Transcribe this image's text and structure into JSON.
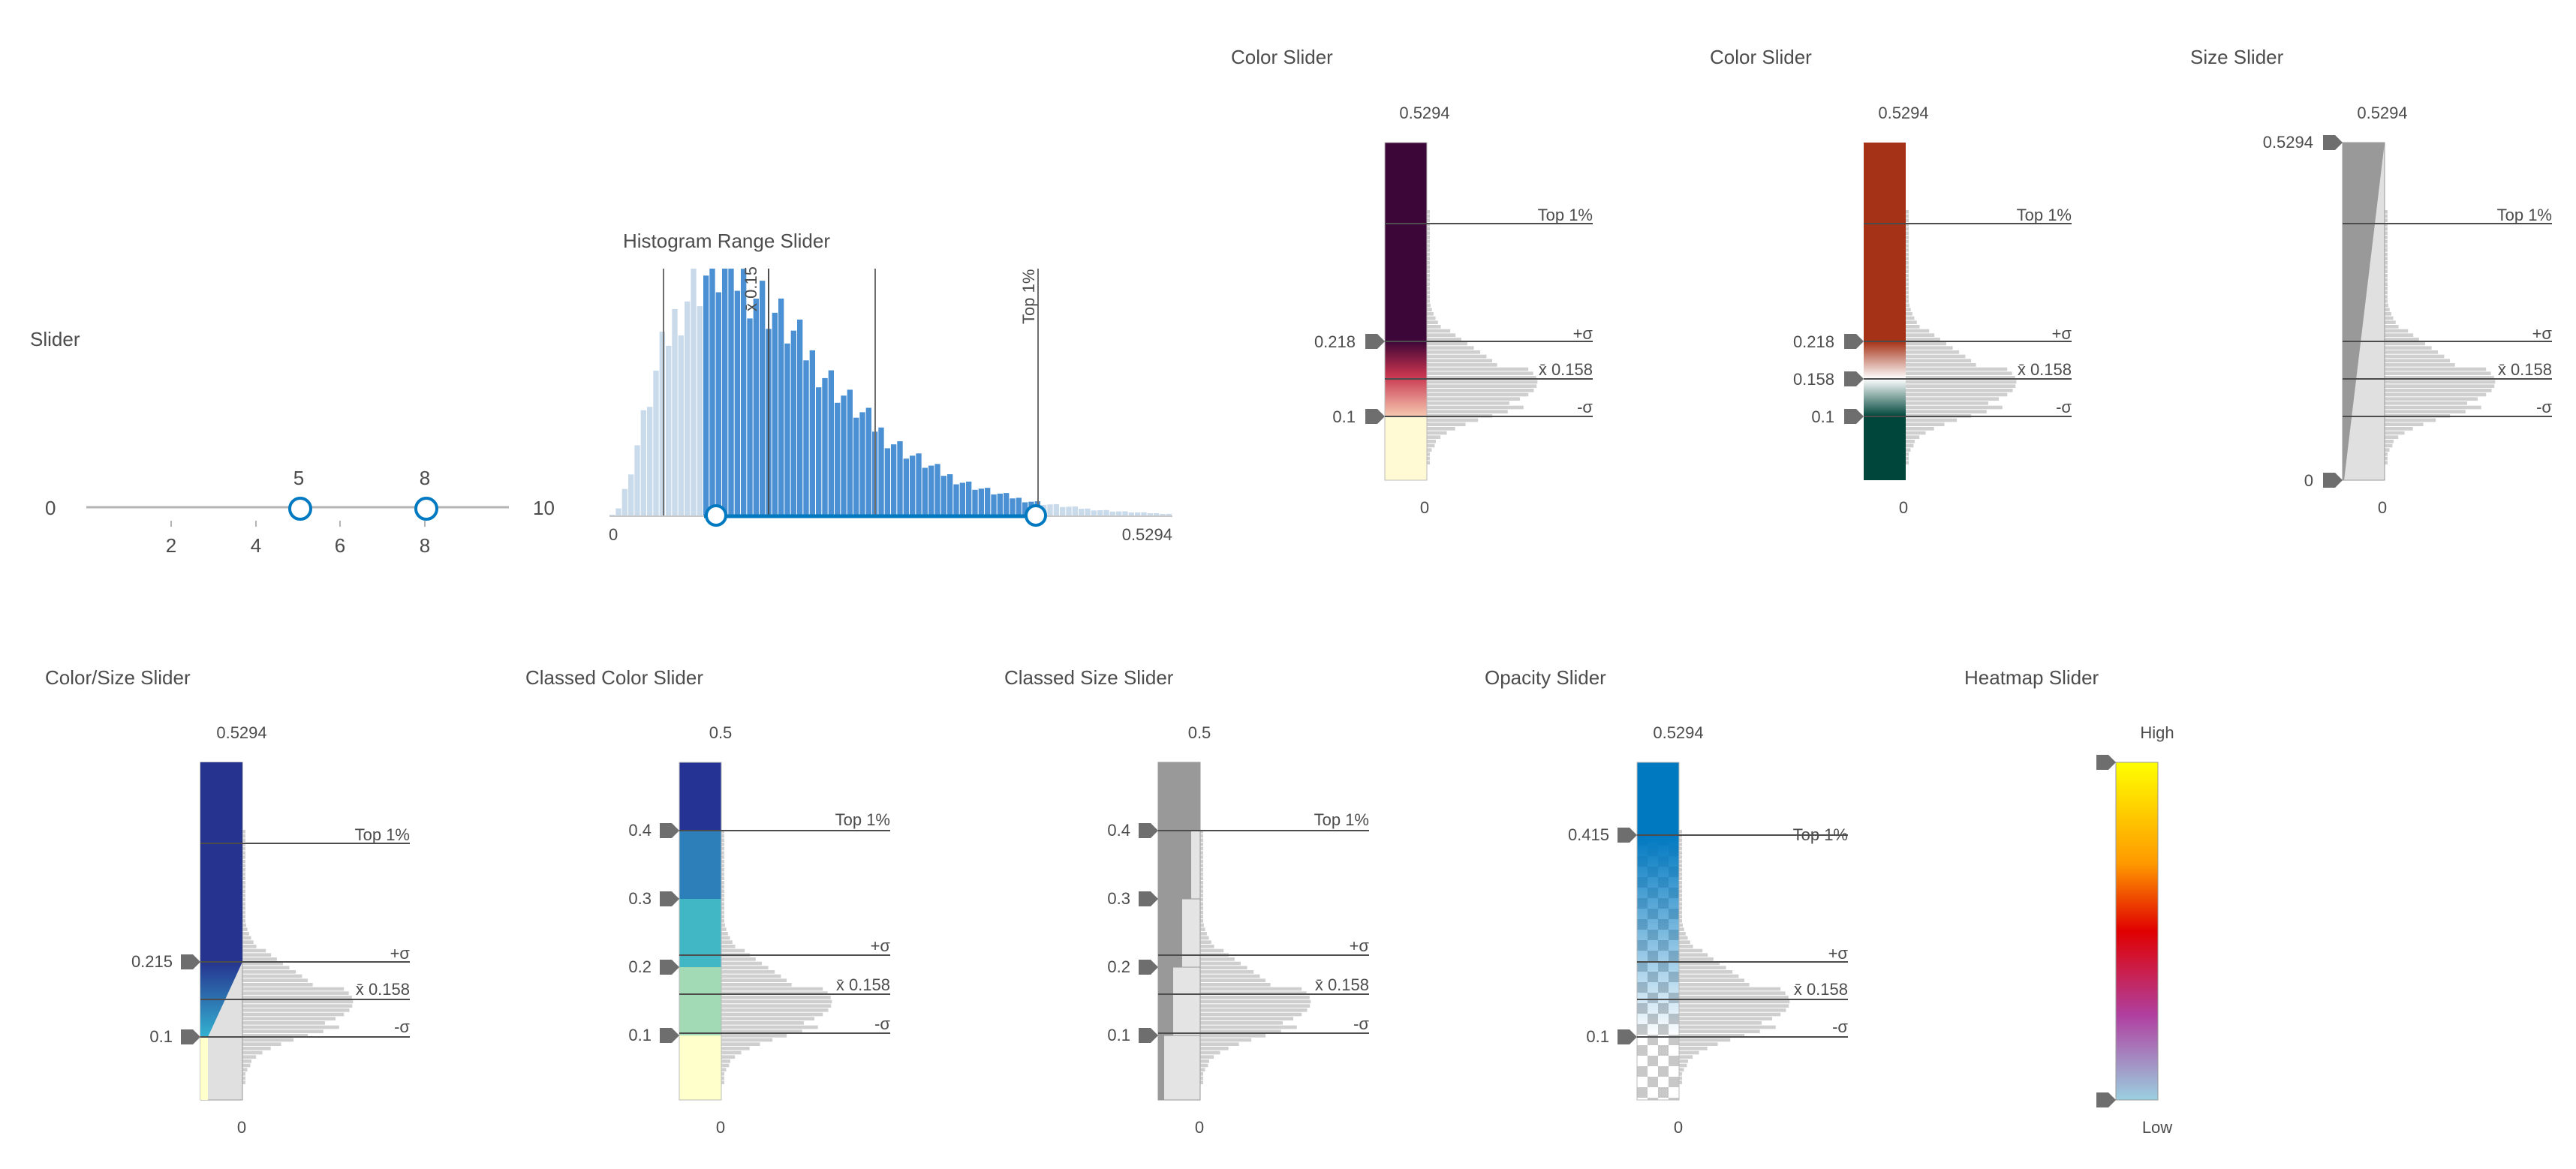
{
  "simple_slider": {
    "title": "Slider",
    "min_label": "0",
    "max_label": "10",
    "value1": "5",
    "value2": "8",
    "ticks": [
      "2",
      "4",
      "6",
      "8"
    ],
    "accent": "#0079c1"
  },
  "histogram_range_slider": {
    "title": "Histogram Range Slider",
    "min_label": "0",
    "max_label": "0.5294",
    "mean_label": "x̄ 0.15",
    "top_label": "Top 1%",
    "bar_color": "#4a90d2",
    "bar_color_light": "#c9daeb"
  },
  "color_slider_1": {
    "title": "Color Slider",
    "max_label": "0.5294",
    "min_label": "0",
    "handle_high": "0.218",
    "handle_low": "0.1",
    "top_label": "Top 1%",
    "plus_sigma": "+σ",
    "mean_label": "x̄ 0.158",
    "minus_sigma": "-σ",
    "colors": [
      "#3d0638",
      "#c7344e",
      "#f6c9b0",
      "#fffad3"
    ]
  },
  "color_slider_2": {
    "title": "Color Slider",
    "max_label": "0.5294",
    "min_label": "0",
    "handle_high": "0.218",
    "handle_mid": "0.158",
    "handle_low": "0.1",
    "top_label": "Top 1%",
    "plus_sigma": "+σ",
    "mean_label": "x̄ 0.158",
    "minus_sigma": "-σ",
    "colors": [
      "#a53217",
      "#ffffff",
      "#00463b"
    ]
  },
  "size_slider": {
    "title": "Size Slider",
    "max_label": "0.5294",
    "min_label": "0",
    "handle_high": "0.5294",
    "handle_low": "0",
    "top_label": "Top 1%",
    "plus_sigma": "+σ",
    "mean_label": "x̄ 0.158",
    "minus_sigma": "-σ"
  },
  "color_size_slider": {
    "title": "Color/Size Slider",
    "max_label": "0.5294",
    "min_label": "0",
    "handle_high": "0.215",
    "handle_low": "0.1",
    "top_label": "Top 1%",
    "plus_sigma": "+σ",
    "mean_label": "x̄ 0.158",
    "minus_sigma": "-σ",
    "colors": [
      "#26338f",
      "#33b2d1",
      "#ffffcc"
    ]
  },
  "classed_color_slider": {
    "title": "Classed Color Slider",
    "max_label": "0.5",
    "min_label": "0",
    "handles": [
      "0.4",
      "0.3",
      "0.2",
      "0.1"
    ],
    "top_label": "Top 1%",
    "plus_sigma": "+σ",
    "mean_label": "x̄ 0.158",
    "minus_sigma": "-σ",
    "colors": [
      "#253494",
      "#2c7fb8",
      "#41b6c4",
      "#a1dab4",
      "#ffffcc"
    ]
  },
  "classed_size_slider": {
    "title": "Classed Size Slider",
    "max_label": "0.5",
    "min_label": "0",
    "handles": [
      "0.4",
      "0.3",
      "0.2",
      "0.1"
    ],
    "top_label": "Top 1%",
    "plus_sigma": "+σ",
    "mean_label": "x̄ 0.158",
    "minus_sigma": "-σ"
  },
  "opacity_slider": {
    "title": "Opacity Slider",
    "max_label": "0.5294",
    "min_label": "0",
    "handle_high": "0.415",
    "handle_low": "0.1",
    "top_label": "Top 1%",
    "plus_sigma": "+σ",
    "mean_label": "x̄ 0.158",
    "minus_sigma": "-σ",
    "color": "#0079c1"
  },
  "heatmap_slider": {
    "title": "Heatmap Slider",
    "high_label": "High",
    "low_label": "Low",
    "colors": [
      "#ffff00",
      "#ff9900",
      "#e00000",
      "#b040a0",
      "#9ad0e0"
    ]
  }
}
